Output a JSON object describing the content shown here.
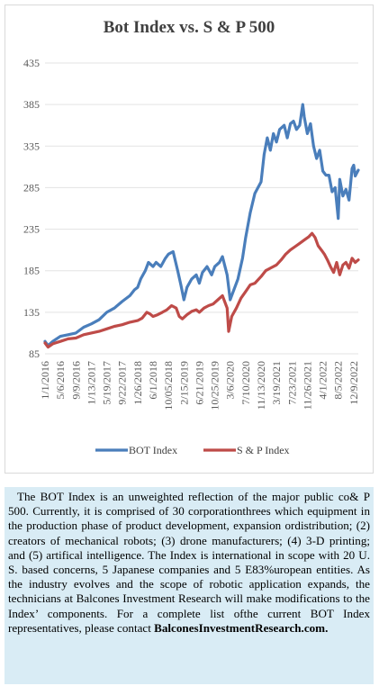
{
  "chart_data": {
    "type": "line",
    "title": "Bot Index vs. S & P 500",
    "xlabel": "",
    "ylabel": "",
    "ylim": [
      85,
      435
    ],
    "yticks": [
      85,
      135,
      185,
      235,
      285,
      335,
      385,
      435
    ],
    "x_tick_labels": [
      "1/1/2016",
      "5/6/2016",
      "9/9/2016",
      "1/13/2017",
      "5/19/2017",
      "9/22/2017",
      "1/26/2018",
      "6/1/2018",
      "10/05/2018",
      "2/15/2019",
      "6/21/2019",
      "10/25/2019",
      "3/6/2020",
      "7/10/2020",
      "11/13/2020",
      "3/19/2021",
      "7/23/2021",
      "11/26/2021",
      "4/1/2022",
      "8/5/2022",
      "12/9/2022"
    ],
    "legend_position": "bottom",
    "grid": true,
    "series": [
      {
        "name": "BOT Index",
        "color": "#4a7ebb",
        "values": [
          [
            0,
            100
          ],
          [
            0.2,
            95
          ],
          [
            0.5,
            100
          ],
          [
            1,
            106
          ],
          [
            1.5,
            108
          ],
          [
            2,
            110
          ],
          [
            2.5,
            117
          ],
          [
            3,
            121
          ],
          [
            3.5,
            126
          ],
          [
            4,
            135
          ],
          [
            4.5,
            140
          ],
          [
            5,
            148
          ],
          [
            5.5,
            155
          ],
          [
            5.8,
            162
          ],
          [
            6,
            165
          ],
          [
            6.2,
            175
          ],
          [
            6.5,
            185
          ],
          [
            6.7,
            195
          ],
          [
            7,
            190
          ],
          [
            7.2,
            195
          ],
          [
            7.5,
            190
          ],
          [
            7.8,
            200
          ],
          [
            8,
            205
          ],
          [
            8.3,
            208
          ],
          [
            8.6,
            185
          ],
          [
            8.8,
            168
          ],
          [
            9,
            150
          ],
          [
            9.2,
            165
          ],
          [
            9.5,
            175
          ],
          [
            9.8,
            180
          ],
          [
            10,
            170
          ],
          [
            10.2,
            183
          ],
          [
            10.5,
            190
          ],
          [
            10.8,
            180
          ],
          [
            11,
            190
          ],
          [
            11.3,
            195
          ],
          [
            11.5,
            202
          ],
          [
            11.8,
            180
          ],
          [
            12,
            150
          ],
          [
            12.2,
            160
          ],
          [
            12.5,
            175
          ],
          [
            12.8,
            200
          ],
          [
            13,
            225
          ],
          [
            13.3,
            255
          ],
          [
            13.6,
            278
          ],
          [
            14,
            292
          ],
          [
            14.2,
            325
          ],
          [
            14.4,
            345
          ],
          [
            14.6,
            330
          ],
          [
            14.8,
            350
          ],
          [
            15,
            340
          ],
          [
            15.2,
            355
          ],
          [
            15.5,
            360
          ],
          [
            15.7,
            345
          ],
          [
            15.9,
            362
          ],
          [
            16.1,
            365
          ],
          [
            16.3,
            355
          ],
          [
            16.5,
            360
          ],
          [
            16.7,
            385
          ],
          [
            16.8,
            370
          ],
          [
            17,
            350
          ],
          [
            17.2,
            362
          ],
          [
            17.4,
            335
          ],
          [
            17.6,
            320
          ],
          [
            17.8,
            330
          ],
          [
            18,
            305
          ],
          [
            18.2,
            300
          ],
          [
            18.4,
            300
          ],
          [
            18.6,
            280
          ],
          [
            18.8,
            285
          ],
          [
            19,
            248
          ],
          [
            19.1,
            295
          ],
          [
            19.3,
            275
          ],
          [
            19.5,
            283
          ],
          [
            19.7,
            270
          ],
          [
            19.9,
            308
          ],
          [
            20,
            312
          ],
          [
            20.1,
            299
          ],
          [
            20.3,
            306
          ]
        ]
      },
      {
        "name": "S & P Index",
        "color": "#be4b48",
        "values": [
          [
            0,
            98
          ],
          [
            0.2,
            93
          ],
          [
            0.5,
            97
          ],
          [
            1,
            100
          ],
          [
            1.5,
            103
          ],
          [
            2,
            104
          ],
          [
            2.5,
            108
          ],
          [
            3,
            110
          ],
          [
            3.5,
            112
          ],
          [
            4,
            115
          ],
          [
            4.5,
            118
          ],
          [
            5,
            120
          ],
          [
            5.5,
            123
          ],
          [
            6,
            125
          ],
          [
            6.3,
            128
          ],
          [
            6.6,
            135
          ],
          [
            6.8,
            133
          ],
          [
            7,
            130
          ],
          [
            7.3,
            132
          ],
          [
            7.6,
            135
          ],
          [
            7.9,
            138
          ],
          [
            8.2,
            143
          ],
          [
            8.5,
            140
          ],
          [
            8.7,
            130
          ],
          [
            8.9,
            127
          ],
          [
            9.2,
            132
          ],
          [
            9.5,
            136
          ],
          [
            9.8,
            138
          ],
          [
            10,
            135
          ],
          [
            10.3,
            140
          ],
          [
            10.6,
            143
          ],
          [
            10.9,
            145
          ],
          [
            11.2,
            150
          ],
          [
            11.5,
            155
          ],
          [
            11.8,
            140
          ],
          [
            11.9,
            112
          ],
          [
            12.1,
            130
          ],
          [
            12.4,
            140
          ],
          [
            12.7,
            152
          ],
          [
            13,
            160
          ],
          [
            13.3,
            168
          ],
          [
            13.6,
            170
          ],
          [
            14,
            178
          ],
          [
            14.3,
            185
          ],
          [
            14.6,
            188
          ],
          [
            15,
            192
          ],
          [
            15.3,
            198
          ],
          [
            15.6,
            205
          ],
          [
            15.9,
            210
          ],
          [
            16.2,
            214
          ],
          [
            16.5,
            218
          ],
          [
            16.8,
            222
          ],
          [
            17.1,
            226
          ],
          [
            17.3,
            230
          ],
          [
            17.5,
            225
          ],
          [
            17.7,
            215
          ],
          [
            17.9,
            210
          ],
          [
            18.1,
            205
          ],
          [
            18.3,
            198
          ],
          [
            18.5,
            190
          ],
          [
            18.7,
            183
          ],
          [
            18.9,
            195
          ],
          [
            19.1,
            180
          ],
          [
            19.3,
            192
          ],
          [
            19.5,
            195
          ],
          [
            19.7,
            188
          ],
          [
            19.9,
            200
          ],
          [
            20.1,
            195
          ],
          [
            20.3,
            198
          ]
        ]
      }
    ]
  },
  "note": {
    "text_before_link": "The BOT Index is an unweighted reflection of the major public co& P 500. Currently, it is comprised of 30 corporationthrees which equipment in the production phase of product development, expansion ordistribution; (2) creators of mechanical robots; (3) drone manufacturers; (4) 3-D printing; and (5) artifical intelligence. The Index is international in scope with 20 U. S. based concerns, 5 Japanese companies and 5 E83%uropean entities. As the industry evolves and the scope of robotic application expands, the technicians at Balcones Investment Research will make modifications to the Index’ components. For a complete list ofthe current BOT Index representatives, please contact ",
    "link_text": "BalconesInvestmentResearch.com."
  }
}
